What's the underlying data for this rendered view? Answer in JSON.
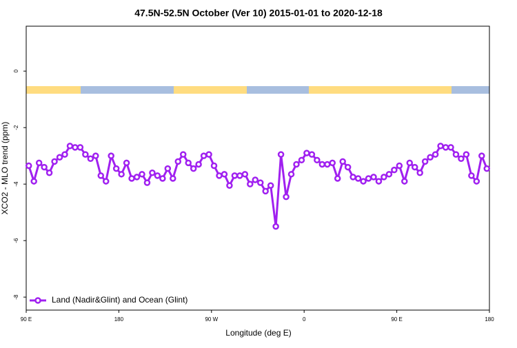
{
  "chart_data": {
    "type": "line",
    "title": "47.5N-52.5N October (Ver 10)   2015-01-01 to 2020-12-18",
    "x_label": "Longitude (deg E)",
    "y_label": "XCO2 - MLO trend (ppm)",
    "xlim": [
      90,
      540
    ],
    "xticks": [
      {
        "value": 90,
        "label": "90 E"
      },
      {
        "value": 180,
        "label": "180"
      },
      {
        "value": 270,
        "label": "90 W"
      },
      {
        "value": 360,
        "label": "0"
      },
      {
        "value": 450,
        "label": "90 E"
      },
      {
        "value": 540,
        "label": "180"
      }
    ],
    "ylim": [
      -8.46,
      1.59
    ],
    "yticks": [
      0,
      -2,
      -4,
      -6,
      -8
    ],
    "legend": "bottom-left",
    "x": [
      92.5,
      97.5,
      102.5,
      107.5,
      112.5,
      117.5,
      122.5,
      127.5,
      132.5,
      137.5,
      142.5,
      147.5,
      152.5,
      157.5,
      162.5,
      167.5,
      172.5,
      177.5,
      182.5,
      187.5,
      192.5,
      197.5,
      202.5,
      207.5,
      212.5,
      217.5,
      222.5,
      227.5,
      232.5,
      237.5,
      242.5,
      247.5,
      252.5,
      257.5,
      262.5,
      267.5,
      272.5,
      277.5,
      282.5,
      287.5,
      292.5,
      297.5,
      302.5,
      307.5,
      312.5,
      317.5,
      322.5,
      327.5,
      332.5,
      337.5,
      342.5,
      347.5,
      352.5,
      357.5,
      362.5,
      367.5,
      372.5,
      377.5,
      382.5,
      387.5,
      392.5,
      397.5,
      402.5,
      407.5,
      412.5,
      417.5,
      422.5,
      427.5,
      432.5,
      437.5,
      442.5,
      447.5,
      452.5,
      457.5,
      462.5,
      467.5,
      472.5,
      477.5,
      482.5,
      487.5,
      492.5,
      497.5,
      502.5,
      507.5,
      512.5,
      517.5,
      522.5,
      527.5,
      532.5,
      537.5
    ],
    "series": [
      {
        "name": "Land (Nadir&Glint) and Ocean (Glint)",
        "color": "#a020f0",
        "values": [
          -3.35,
          -3.9,
          -3.25,
          -3.4,
          -3.6,
          -3.2,
          -3.05,
          -2.95,
          -2.65,
          -2.7,
          -2.7,
          -2.95,
          -3.1,
          -3.0,
          -3.7,
          -3.9,
          -3.0,
          -3.45,
          -3.65,
          -3.25,
          -3.8,
          -3.75,
          -3.65,
          -3.95,
          -3.6,
          -3.7,
          -3.8,
          -3.45,
          -3.8,
          -3.2,
          -2.95,
          -3.25,
          -3.45,
          -3.3,
          -3.0,
          -2.95,
          -3.35,
          -3.7,
          -3.65,
          -4.05,
          -3.7,
          -3.7,
          -3.65,
          -4.0,
          -3.85,
          -3.95,
          -4.25,
          -4.05,
          -5.5,
          -2.95,
          -4.45,
          -3.65,
          -3.3,
          -3.15,
          -2.9,
          -2.95,
          -3.15,
          -3.3,
          -3.3,
          -3.25,
          -3.8,
          -3.2,
          -3.4,
          -3.75,
          -3.8,
          -3.9,
          -3.8,
          -3.75,
          -3.9,
          -3.75,
          -3.65,
          -3.5,
          -3.35,
          -3.9,
          -3.25,
          -3.4,
          -3.6,
          -3.2,
          -3.05,
          -2.95,
          -2.65,
          -2.7,
          -2.7,
          -2.95,
          -3.1,
          -2.95,
          -3.7,
          -3.9,
          -3.0,
          -3.45
        ]
      }
    ]
  }
}
